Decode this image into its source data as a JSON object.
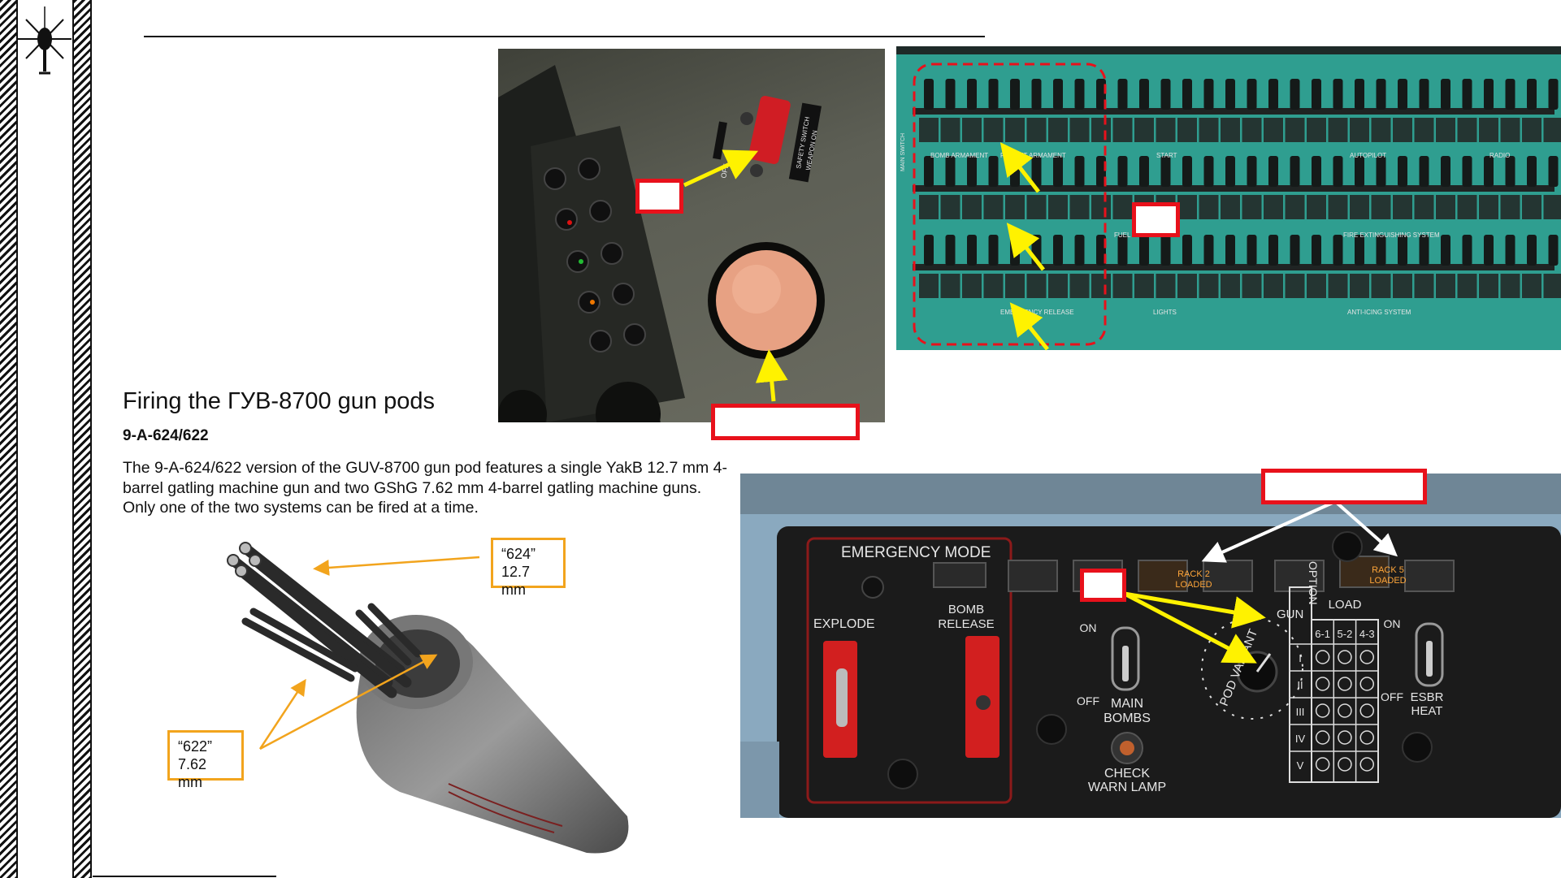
{
  "heading": "Firing the ГУВ-8700 gun pods",
  "subheading": "9-A-624/622",
  "description": "The 9-A-624/622 version of the GUV-8700 gun pod features a single YakB 12.7 mm 4-barrel gatling machine gun and two GShG 7.62 mm 4-barrel gatling machine guns. Only one of the two systems can be fired at a time.",
  "gunpod_labels": {
    "l624_line1": "“624”",
    "l624_line2": "12.7 mm",
    "l622_line1": "“622”",
    "l622_line2": "7.62 mm"
  },
  "armament_panel": {
    "emergency_mode": "EMERGENCY MODE",
    "explode": "EXPLODE",
    "bomb_release_1": "BOMB",
    "bomb_release_2": "RELEASE",
    "main_bombs_1": "MAIN",
    "main_bombs_2": "BOMBS",
    "check_warn_1": "CHECK",
    "check_warn_2": "WARN LAMP",
    "on": "ON",
    "off": "OFF",
    "rack2": "RACK 2",
    "rack5": "RACK 5",
    "loaded": "LOADED",
    "gun": "GUN",
    "pod_variant": "POD VARIANT",
    "option": "OPTION",
    "load": "LOAD",
    "load_cols": [
      "6-1",
      "5-2",
      "4-3"
    ],
    "load_rows": [
      "I",
      "II",
      "III",
      "IV",
      "V"
    ],
    "esbr_1": "ESBR",
    "esbr_2": "HEAT"
  },
  "circuit_panel": {
    "bomb_armament": "BOMB ARMAMENT",
    "rocket_armament": "ROCKET ARMAMENT",
    "start": "START",
    "autopilot": "AUTOPILOT",
    "radio": "RADIO",
    "fire_ext": "FIRE EXTINGUISHING SYSTEM",
    "fuel_system": "FUEL SYSTEM",
    "lights": "LIGHTS",
    "anti_icing": "ANTI-ICING SYSTEM",
    "emergency_release": "EMERGENCY RELEASE",
    "main_switch": "MAIN SWITCH"
  },
  "safety_panel": {
    "off": "OFF",
    "safety_switch_1": "SAFETY SWITCH",
    "safety_switch_2": "WEAPON ON"
  },
  "colors": {
    "callout_red": "#e8111b",
    "arrow_yellow": "#fff200",
    "label_orange": "#f2a41d",
    "panel_teal": "#2f9e90"
  }
}
